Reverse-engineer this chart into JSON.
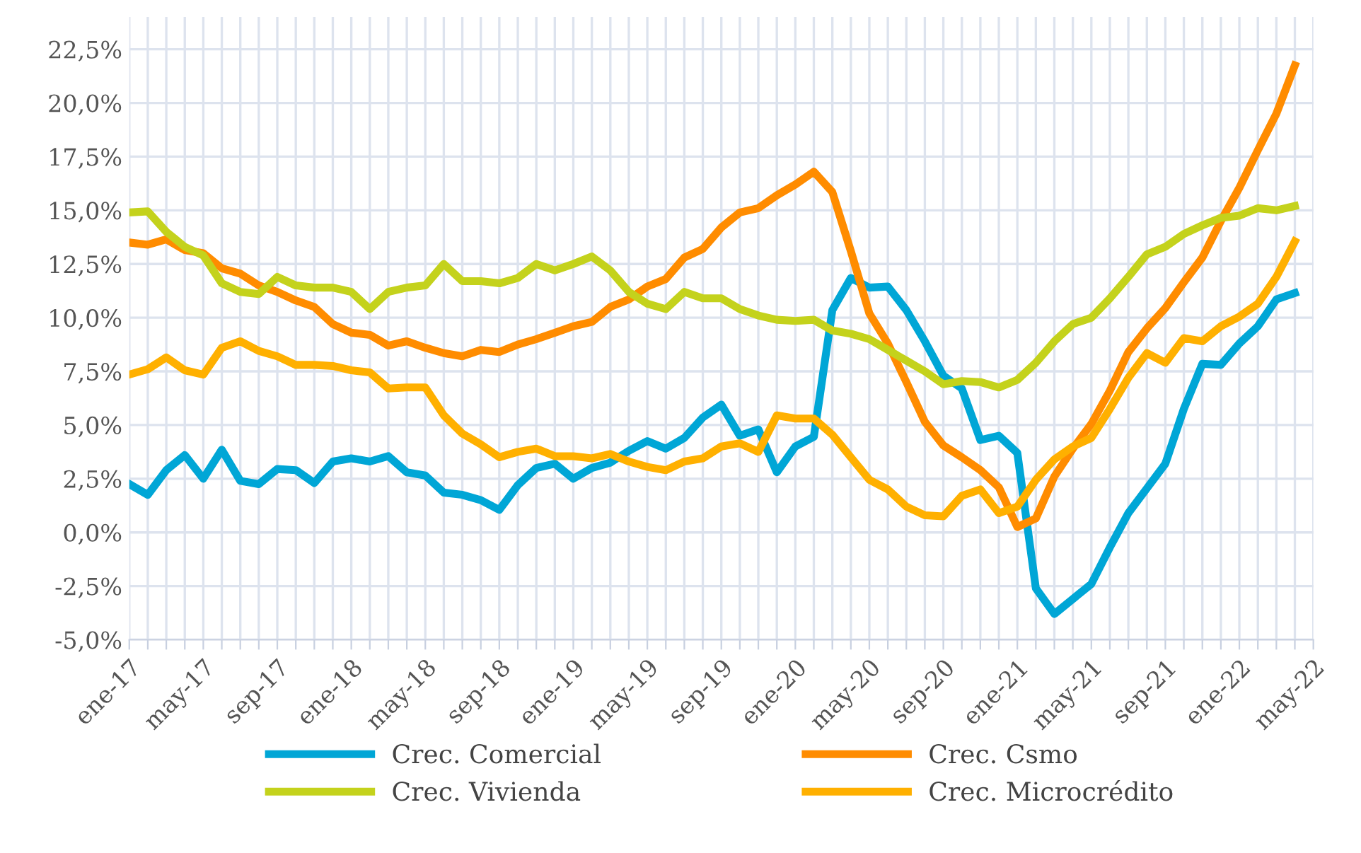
{
  "chart_data": {
    "type": "line",
    "x": [
      "2017-01",
      "2017-02",
      "2017-03",
      "2017-04",
      "2017-05",
      "2017-06",
      "2017-07",
      "2017-08",
      "2017-09",
      "2017-10",
      "2017-11",
      "2017-12",
      "2018-01",
      "2018-02",
      "2018-03",
      "2018-04",
      "2018-05",
      "2018-06",
      "2018-07",
      "2018-08",
      "2018-09",
      "2018-10",
      "2018-11",
      "2018-12",
      "2019-01",
      "2019-02",
      "2019-03",
      "2019-04",
      "2019-05",
      "2019-06",
      "2019-07",
      "2019-08",
      "2019-09",
      "2019-10",
      "2019-11",
      "2019-12",
      "2020-01",
      "2020-02",
      "2020-03",
      "2020-04",
      "2020-05",
      "2020-06",
      "2020-07",
      "2020-08",
      "2020-09",
      "2020-10",
      "2020-11",
      "2020-12",
      "2021-01",
      "2021-02",
      "2021-03",
      "2021-04",
      "2021-05",
      "2021-06",
      "2021-07",
      "2021-08",
      "2021-09",
      "2021-10",
      "2021-11",
      "2021-12",
      "2022-01",
      "2022-02",
      "2022-03",
      "2022-04"
    ],
    "series": [
      {
        "name": "Crec. Comercial",
        "color": "#00a6d6",
        "values": [
          2.25,
          1.75,
          2.9,
          3.6,
          2.5,
          3.85,
          2.4,
          2.25,
          2.95,
          2.9,
          2.3,
          3.3,
          3.45,
          3.3,
          3.55,
          2.8,
          2.65,
          1.85,
          1.75,
          1.5,
          1.05,
          2.2,
          3.0,
          3.2,
          2.5,
          3.0,
          3.25,
          3.8,
          4.25,
          3.9,
          4.4,
          5.35,
          5.95,
          4.5,
          4.8,
          2.8,
          4.0,
          4.45,
          10.35,
          11.85,
          11.4,
          11.45,
          10.35,
          8.9,
          7.3,
          6.7,
          4.3,
          4.5,
          3.7,
          -2.6,
          -3.8,
          -3.1,
          -2.4,
          -0.7,
          0.9,
          2.05,
          3.2,
          5.75,
          7.85,
          7.8,
          8.8,
          9.6,
          10.85,
          11.15
        ]
      },
      {
        "name": "Crec. Csmo",
        "color": "#ff8c00",
        "values": [
          13.5,
          13.4,
          13.65,
          13.15,
          13.0,
          12.3,
          12.05,
          11.5,
          11.2,
          10.8,
          10.5,
          9.7,
          9.3,
          9.2,
          8.7,
          8.9,
          8.6,
          8.35,
          8.2,
          8.5,
          8.4,
          8.75,
          9.0,
          9.3,
          9.6,
          9.8,
          10.5,
          10.85,
          11.45,
          11.8,
          12.8,
          13.2,
          14.2,
          14.9,
          15.1,
          15.7,
          16.2,
          16.8,
          15.85,
          13.1,
          10.2,
          8.8,
          7.0,
          5.15,
          4.05,
          3.5,
          2.9,
          2.1,
          0.25,
          0.65,
          2.6,
          3.9,
          5.05,
          6.6,
          8.4,
          9.5,
          10.45,
          11.65,
          12.8,
          14.5,
          16.05,
          17.8,
          19.5,
          21.75
        ]
      },
      {
        "name": "Crec. Vivienda",
        "color": "#c4d21c",
        "values": [
          14.9,
          14.95,
          14.0,
          13.3,
          12.9,
          11.6,
          11.2,
          11.1,
          11.9,
          11.5,
          11.4,
          11.4,
          11.2,
          10.4,
          11.2,
          11.4,
          11.5,
          12.5,
          11.7,
          11.7,
          11.6,
          11.85,
          12.5,
          12.2,
          12.5,
          12.85,
          12.2,
          11.2,
          10.65,
          10.4,
          11.2,
          10.9,
          10.9,
          10.4,
          10.1,
          9.9,
          9.85,
          9.9,
          9.4,
          9.25,
          9.0,
          8.5,
          8.0,
          7.5,
          6.9,
          7.05,
          7.0,
          6.75,
          7.1,
          7.9,
          8.9,
          9.7,
          10.0,
          10.9,
          11.9,
          12.95,
          13.3,
          13.9,
          14.3,
          14.65,
          14.75,
          15.1,
          15.0,
          15.2
        ]
      },
      {
        "name": "Crec. Microcrédito",
        "color": "#ffb000",
        "values": [
          7.35,
          7.6,
          8.15,
          7.55,
          7.35,
          8.6,
          8.9,
          8.45,
          8.2,
          7.8,
          7.8,
          7.75,
          7.55,
          7.45,
          6.7,
          6.75,
          6.75,
          5.45,
          4.6,
          4.1,
          3.5,
          3.75,
          3.9,
          3.55,
          3.55,
          3.45,
          3.65,
          3.3,
          3.05,
          2.9,
          3.3,
          3.45,
          4.0,
          4.15,
          3.75,
          5.45,
          5.3,
          5.3,
          4.55,
          3.5,
          2.45,
          2.0,
          1.2,
          0.8,
          0.75,
          1.7,
          2.0,
          0.9,
          1.2,
          2.45,
          3.4,
          4.0,
          4.4,
          5.75,
          7.2,
          8.35,
          7.9,
          9.05,
          8.9,
          9.6,
          10.05,
          10.65,
          11.9,
          13.55
        ]
      }
    ],
    "xlim": [
      "2017-01",
      "2022-05"
    ],
    "xticks": [
      {
        "value": "2017-01",
        "label": "ene-17"
      },
      {
        "value": "2017-02",
        "label": null
      },
      {
        "value": "2017-03",
        "label": null
      },
      {
        "value": "2017-04",
        "label": null
      },
      {
        "value": "2017-05",
        "label": "may-17"
      },
      {
        "value": "2017-06",
        "label": null
      },
      {
        "value": "2017-07",
        "label": null
      },
      {
        "value": "2017-08",
        "label": null
      },
      {
        "value": "2017-09",
        "label": "sep-17"
      },
      {
        "value": "2017-10",
        "label": null
      },
      {
        "value": "2017-11",
        "label": null
      },
      {
        "value": "2017-12",
        "label": null
      },
      {
        "value": "2018-01",
        "label": "ene-18"
      },
      {
        "value": "2018-02",
        "label": null
      },
      {
        "value": "2018-03",
        "label": null
      },
      {
        "value": "2018-04",
        "label": null
      },
      {
        "value": "2018-05",
        "label": "may-18"
      },
      {
        "value": "2018-06",
        "label": null
      },
      {
        "value": "2018-07",
        "label": null
      },
      {
        "value": "2018-08",
        "label": null
      },
      {
        "value": "2018-09",
        "label": "sep-18"
      },
      {
        "value": "2018-10",
        "label": null
      },
      {
        "value": "2018-11",
        "label": null
      },
      {
        "value": "2018-12",
        "label": null
      },
      {
        "value": "2019-01",
        "label": "ene-19"
      },
      {
        "value": "2019-02",
        "label": null
      },
      {
        "value": "2019-03",
        "label": null
      },
      {
        "value": "2019-04",
        "label": null
      },
      {
        "value": "2019-05",
        "label": "may-19"
      },
      {
        "value": "2019-06",
        "label": null
      },
      {
        "value": "2019-07",
        "label": null
      },
      {
        "value": "2019-08",
        "label": null
      },
      {
        "value": "2019-09",
        "label": "sep-19"
      },
      {
        "value": "2019-10",
        "label": null
      },
      {
        "value": "2019-11",
        "label": null
      },
      {
        "value": "2019-12",
        "label": null
      },
      {
        "value": "2020-01",
        "label": "ene-20"
      },
      {
        "value": "2020-02",
        "label": null
      },
      {
        "value": "2020-03",
        "label": null
      },
      {
        "value": "2020-04",
        "label": null
      },
      {
        "value": "2020-05",
        "label": "may-20"
      },
      {
        "value": "2020-06",
        "label": null
      },
      {
        "value": "2020-07",
        "label": null
      },
      {
        "value": "2020-08",
        "label": null
      },
      {
        "value": "2020-09",
        "label": "sep-20"
      },
      {
        "value": "2020-10",
        "label": null
      },
      {
        "value": "2020-11",
        "label": null
      },
      {
        "value": "2020-12",
        "label": null
      },
      {
        "value": "2021-01",
        "label": "ene-21"
      },
      {
        "value": "2021-02",
        "label": null
      },
      {
        "value": "2021-03",
        "label": null
      },
      {
        "value": "2021-04",
        "label": null
      },
      {
        "value": "2021-05",
        "label": "may-21"
      },
      {
        "value": "2021-06",
        "label": null
      },
      {
        "value": "2021-07",
        "label": null
      },
      {
        "value": "2021-08",
        "label": null
      },
      {
        "value": "2021-09",
        "label": "sep-21"
      },
      {
        "value": "2021-10",
        "label": null
      },
      {
        "value": "2021-11",
        "label": null
      },
      {
        "value": "2021-12",
        "label": null
      },
      {
        "value": "2022-01",
        "label": "ene-22"
      },
      {
        "value": "2022-02",
        "label": null
      },
      {
        "value": "2022-03",
        "label": null
      },
      {
        "value": "2022-04",
        "label": null
      },
      {
        "value": "2022-05",
        "label": "may-22"
      }
    ],
    "ylim": [
      -5,
      24
    ],
    "yticks": [
      {
        "value": -5,
        "label": "-5,0%"
      },
      {
        "value": -2.5,
        "label": "-2,5%"
      },
      {
        "value": 0,
        "label": "0,0%"
      },
      {
        "value": 2.5,
        "label": "2,5%"
      },
      {
        "value": 5,
        "label": "5,0%"
      },
      {
        "value": 7.5,
        "label": "7,5%"
      },
      {
        "value": 10,
        "label": "10,0%"
      },
      {
        "value": 12.5,
        "label": "12,5%"
      },
      {
        "value": 15,
        "label": "15,0%"
      },
      {
        "value": 17.5,
        "label": "17,5%"
      },
      {
        "value": 20,
        "label": "20,0%"
      },
      {
        "value": 22.5,
        "label": "22,5%"
      }
    ],
    "grid": true,
    "legend": "bottom",
    "marker": "none",
    "line_style": "solid"
  }
}
